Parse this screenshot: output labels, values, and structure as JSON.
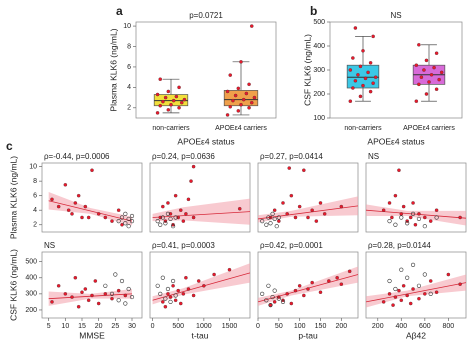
{
  "chart_data": [
    {
      "type": "box",
      "panel": "a",
      "annotation": "p=0.0721",
      "ylabel": "Plasma KLK6 (ng/mL)",
      "xlabel": "APOEε4 status",
      "categories": [
        "non-carriers",
        "APOEε4 carriers"
      ],
      "ylim": [
        1,
        10.4
      ],
      "yticks": [
        2,
        4,
        6,
        8,
        10
      ],
      "series": [
        {
          "color": "#f2df3c",
          "min": 1.5,
          "q1": 2.2,
          "median": 2.7,
          "q3": 3.3,
          "max": 4.8,
          "points": [
            1.5,
            1.8,
            2.0,
            2.2,
            2.3,
            2.5,
            2.6,
            2.7,
            2.8,
            3.0,
            3.1,
            3.3,
            3.6,
            4.0,
            4.8
          ]
        },
        {
          "color": "#f0a04b",
          "min": 1.3,
          "q1": 2.2,
          "median": 2.8,
          "q3": 3.7,
          "max": 6.5,
          "points": [
            1.3,
            1.7,
            2.0,
            2.1,
            2.3,
            2.5,
            2.7,
            2.8,
            3.0,
            3.2,
            3.4,
            3.6,
            3.9,
            4.3,
            5.2,
            6.5,
            10
          ]
        }
      ]
    },
    {
      "type": "box",
      "panel": "b",
      "annotation": "NS",
      "ylabel": "CSF KLK6 (ng/mL)",
      "xlabel": "APOEε4 status",
      "categories": [
        "non-carriers",
        "APOEε4 carriers"
      ],
      "ylim": [
        100,
        500
      ],
      "yticks": [
        100,
        200,
        300,
        400,
        500
      ],
      "series": [
        {
          "color": "#3cc8e6",
          "min": 170,
          "q1": 225,
          "median": 270,
          "q3": 320,
          "max": 440,
          "points": [
            170,
            190,
            210,
            225,
            235,
            245,
            255,
            265,
            270,
            280,
            290,
            300,
            315,
            330,
            350,
            380,
            440,
            475
          ]
        },
        {
          "color": "#d86ad8",
          "min": 170,
          "q1": 240,
          "median": 280,
          "q3": 320,
          "max": 405,
          "points": [
            170,
            200,
            220,
            240,
            250,
            260,
            270,
            280,
            290,
            300,
            310,
            320,
            340,
            370,
            405
          ]
        }
      ]
    },
    {
      "type": "scatter",
      "panel": "c",
      "annotation": "ρ=-0.44, p=0.0006",
      "ylabel": "Plasma KLK6 (ng/mL)",
      "xlim": [
        3,
        33
      ],
      "ylim": [
        1,
        10.5
      ],
      "yticks": [
        2,
        4,
        6,
        8,
        10
      ],
      "series": [
        {
          "color": "#e8192c",
          "marker": "filled",
          "x": [
            6,
            8,
            10,
            11,
            12,
            13,
            14,
            15,
            16,
            17,
            18,
            20,
            22,
            24,
            26,
            27
          ],
          "values": [
            5.5,
            4.5,
            7.5,
            4,
            3.5,
            5,
            6,
            3,
            4.5,
            3,
            9.5,
            3.5,
            3,
            2.5,
            4,
            2
          ]
        },
        {
          "color": "#333333",
          "marker": "open",
          "x": [
            26,
            27,
            28,
            28,
            29,
            29,
            30,
            30
          ],
          "values": [
            2.5,
            3,
            3.5,
            2.2,
            2.8,
            1.8,
            2.5,
            3.2
          ]
        }
      ],
      "fit": {
        "x": [
          5,
          30
        ],
        "values": [
          5.3,
          2.5
        ]
      },
      "band": {
        "x": [
          5,
          17.5,
          30
        ],
        "lower": [
          4.1,
          3.5,
          1.9
        ],
        "upper": [
          6.5,
          4.3,
          3.1
        ]
      }
    },
    {
      "type": "scatter",
      "annotation": "ρ=0.24, p=0.0636",
      "xlim": [
        -50,
        1900
      ],
      "ylim": [
        1,
        10.5
      ],
      "series": [
        {
          "color": "#e8192c",
          "marker": "filled",
          "x": [
            150,
            200,
            250,
            300,
            350,
            400,
            450,
            500,
            550,
            600,
            650,
            700,
            750,
            800,
            800,
            1700
          ],
          "values": [
            3,
            4.5,
            2.5,
            5,
            3.5,
            2,
            6,
            3,
            4,
            2.5,
            3.5,
            5.5,
            8,
            10,
            3,
            4.2
          ]
        },
        {
          "color": "#333333",
          "marker": "open",
          "x": [
            100,
            150,
            200,
            250,
            300,
            350,
            400,
            450
          ],
          "values": [
            2.5,
            2,
            3,
            2.2,
            3.5,
            2.8,
            1.8,
            3
          ]
        }
      ],
      "fit": {
        "x": [
          0,
          1900
        ],
        "values": [
          3.0,
          3.8
        ]
      },
      "band": {
        "x": [
          0,
          600,
          1900
        ],
        "lower": [
          2.5,
          2.6,
          2.0
        ],
        "upper": [
          3.5,
          4.4,
          5.6
        ]
      }
    },
    {
      "type": "scatter",
      "annotation": "ρ=0.27, p=0.0414",
      "xlim": [
        0,
        240
      ],
      "ylim": [
        1,
        10.5
      ],
      "series": [
        {
          "color": "#e8192c",
          "marker": "filled",
          "x": [
            30,
            40,
            50,
            60,
            70,
            80,
            90,
            100,
            110,
            120,
            130,
            140,
            150,
            160,
            200,
            75
          ],
          "values": [
            3,
            4,
            2.5,
            5,
            3.5,
            6,
            3,
            4.5,
            9.5,
            3,
            4,
            2.5,
            5,
            3.5,
            4.5,
            9.8
          ]
        },
        {
          "color": "#333333",
          "marker": "open",
          "x": [
            10,
            20,
            25,
            30,
            35,
            40,
            45,
            50
          ],
          "values": [
            2.5,
            2,
            3,
            2.2,
            3.5,
            2.8,
            1.8,
            3
          ]
        }
      ],
      "fit": {
        "x": [
          0,
          240
        ],
        "values": [
          2.8,
          4.6
        ]
      },
      "band": {
        "x": [
          0,
          80,
          240
        ],
        "lower": [
          2.3,
          3.1,
          3.3
        ],
        "upper": [
          3.3,
          3.9,
          5.9
        ]
      }
    },
    {
      "type": "scatter",
      "annotation": "NS",
      "xlim": [
        100,
        950
      ],
      "ylim": [
        1,
        10.5
      ],
      "series": [
        {
          "color": "#e8192c",
          "marker": "filled",
          "x": [
            250,
            300,
            320,
            350,
            380,
            400,
            420,
            450,
            480,
            500,
            520,
            550,
            600,
            650,
            700,
            900
          ],
          "values": [
            4,
            5,
            3,
            6,
            9.5,
            3.5,
            4.5,
            2.5,
            3,
            5,
            2,
            3.5,
            3,
            2.5,
            4,
            3
          ]
        },
        {
          "color": "#333333",
          "marker": "open",
          "x": [
            300,
            350,
            400,
            450,
            500,
            550,
            600,
            700
          ],
          "values": [
            2.5,
            2,
            3,
            2.2,
            3.5,
            2.8,
            1.8,
            3
          ]
        }
      ],
      "fit": {
        "x": [
          100,
          950
        ],
        "values": [
          4.0,
          2.9
        ]
      },
      "band": {
        "x": [
          100,
          450,
          950
        ],
        "lower": [
          3.2,
          3.2,
          1.9
        ],
        "upper": [
          4.8,
          3.9,
          3.9
        ]
      }
    },
    {
      "type": "scatter",
      "annotation": "NS",
      "ylabel": "CSF KLK6 (ng/mL)",
      "xlabel": "MMSE",
      "xlim": [
        3,
        33
      ],
      "ylim": [
        150,
        560
      ],
      "xticks": [
        5,
        10,
        15,
        20,
        25,
        30
      ],
      "yticks": [
        200,
        300,
        400,
        500
      ],
      "series": [
        {
          "color": "#e8192c",
          "marker": "filled",
          "x": [
            6,
            8,
            10,
            12,
            13,
            14,
            15,
            16,
            17,
            18,
            19,
            20,
            22,
            24,
            26,
            28
          ],
          "values": [
            250,
            350,
            300,
            280,
            400,
            220,
            310,
            330,
            260,
            290,
            380,
            240,
            300,
            270,
            320,
            290
          ]
        },
        {
          "color": "#333333",
          "marker": "open",
          "x": [
            22,
            24,
            25,
            26,
            27,
            28,
            29,
            30
          ],
          "values": [
            350,
            300,
            420,
            260,
            380,
            240,
            330,
            280
          ]
        }
      ],
      "fit": {
        "x": [
          5,
          30
        ],
        "values": [
          270,
          300
        ]
      },
      "band": {
        "x": [
          5,
          17.5,
          30
        ],
        "lower": [
          225,
          270,
          270
        ],
        "upper": [
          315,
          300,
          330
        ]
      }
    },
    {
      "type": "scatter",
      "annotation": "ρ=0.41, p=0.0003",
      "xlabel": "t-tau",
      "xlim": [
        -50,
        1900
      ],
      "ylim": [
        150,
        560
      ],
      "xticks": [
        0,
        500,
        1000,
        1500
      ],
      "series": [
        {
          "color": "#e8192c",
          "marker": "filled",
          "x": [
            200,
            250,
            300,
            350,
            400,
            450,
            500,
            550,
            600,
            650,
            700,
            800,
            900,
            1000,
            1200,
            1500
          ],
          "values": [
            250,
            220,
            300,
            280,
            350,
            260,
            320,
            240,
            300,
            400,
            330,
            290,
            380,
            350,
            420,
            450
          ]
        },
        {
          "color": "#333333",
          "marker": "open",
          "x": [
            100,
            150,
            200,
            250,
            300,
            350,
            400,
            450
          ],
          "values": [
            350,
            300,
            400,
            270,
            330,
            250,
            380,
            290
          ]
        }
      ],
      "fit": {
        "x": [
          0,
          1900
        ],
        "values": [
          260,
          430
        ]
      },
      "band": {
        "x": [
          0,
          600,
          1900
        ],
        "lower": [
          235,
          295,
          370
        ],
        "upper": [
          285,
          335,
          490
        ]
      }
    },
    {
      "type": "scatter",
      "annotation": "ρ=0.42, p=0.0001",
      "xlabel": "p-tau",
      "xlim": [
        0,
        240
      ],
      "ylim": [
        150,
        560
      ],
      "xticks": [
        0,
        50,
        100,
        150,
        200
      ],
      "series": [
        {
          "color": "#e8192c",
          "marker": "filled",
          "x": [
            30,
            40,
            50,
            60,
            70,
            80,
            90,
            100,
            110,
            120,
            130,
            150,
            170,
            190,
            200,
            220
          ],
          "values": [
            230,
            250,
            280,
            260,
            300,
            240,
            320,
            350,
            290,
            330,
            370,
            310,
            380,
            400,
            360,
            440
          ]
        },
        {
          "color": "#333333",
          "marker": "open",
          "x": [
            10,
            20,
            25,
            30,
            35,
            40,
            50,
            60
          ],
          "values": [
            300,
            260,
            350,
            230,
            280,
            320,
            270,
            250
          ]
        }
      ],
      "fit": {
        "x": [
          0,
          240
        ],
        "values": [
          250,
          420
        ]
      },
      "band": {
        "x": [
          0,
          80,
          240
        ],
        "lower": [
          225,
          290,
          370
        ],
        "upper": [
          275,
          320,
          470
        ]
      }
    },
    {
      "type": "scatter",
      "annotation": "ρ=0.28, p=0.0144",
      "xlabel": "Aβ42",
      "xlim": [
        100,
        950
      ],
      "ylim": [
        150,
        560
      ],
      "xticks": [
        200,
        400,
        600,
        800
      ],
      "series": [
        {
          "color": "#e8192c",
          "marker": "filled",
          "x": [
            250,
            300,
            330,
            350,
            380,
            400,
            420,
            450,
            480,
            500,
            550,
            600,
            650,
            700,
            800,
            900
          ],
          "values": [
            250,
            300,
            230,
            280,
            320,
            260,
            350,
            290,
            240,
            330,
            270,
            300,
            380,
            310,
            420,
            360
          ]
        },
        {
          "color": "#333333",
          "marker": "open",
          "x": [
            300,
            350,
            400,
            450,
            500,
            550,
            600,
            650
          ],
          "values": [
            380,
            330,
            450,
            400,
            480,
            350,
            420,
            300
          ]
        }
      ],
      "fit": {
        "x": [
          100,
          950
        ],
        "values": [
          250,
          370
        ]
      },
      "band": {
        "x": [
          100,
          450,
          950
        ],
        "lower": [
          215,
          285,
          320
        ],
        "upper": [
          285,
          320,
          420
        ]
      }
    }
  ]
}
